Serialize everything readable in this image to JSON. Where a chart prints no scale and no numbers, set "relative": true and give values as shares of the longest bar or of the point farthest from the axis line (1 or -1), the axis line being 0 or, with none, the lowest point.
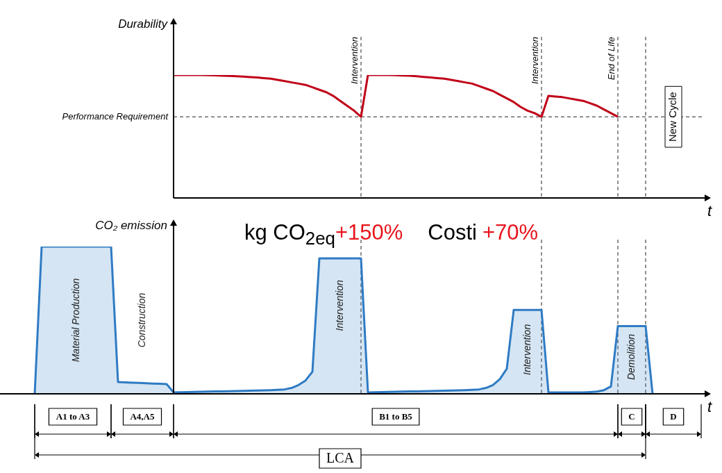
{
  "chart_data": [
    {
      "type": "line",
      "ylabel": "Durability",
      "xlabel": "t",
      "relative": true,
      "grid": "x",
      "legend": false,
      "marker": "none",
      "line_style": "solid",
      "categories": [
        null,
        null,
        null,
        null,
        null,
        null,
        null,
        null,
        null,
        null,
        null,
        null,
        null,
        null,
        null,
        null,
        null,
        null,
        null,
        null,
        null,
        null,
        null,
        null,
        null,
        null,
        null,
        null,
        null,
        null,
        null,
        null,
        null,
        null,
        null,
        null,
        null,
        null,
        null,
        null,
        null,
        null,
        null,
        null,
        null,
        null,
        null,
        null,
        null,
        null,
        null,
        null,
        null,
        null,
        null,
        null,
        null,
        null,
        null,
        null,
        null,
        null,
        null,
        null,
        null,
        null,
        null,
        null,
        null,
        null,
        null,
        null,
        null,
        null,
        null,
        null,
        null,
        null,
        null,
        null,
        null,
        null,
        null,
        null,
        null,
        null,
        null,
        null,
        null,
        null,
        null,
        null,
        null,
        null,
        null,
        null,
        null,
        null
      ],
      "series": [
        {
          "color": "#c00018",
          "values": [
            null,
            null,
            null,
            null,
            null,
            null,
            null,
            null,
            null,
            null,
            null,
            null,
            null,
            null,
            null,
            null,
            null,
            null,
            null,
            null,
            null,
            1.0,
            1.0,
            1.0,
            1.0,
            1.0,
            0.998,
            0.997,
            0.995,
            0.993,
            0.99,
            0.987,
            0.983,
            0.98,
            0.975,
            0.97,
            0.96,
            0.95,
            0.94,
            0.93,
            0.92,
            0.9,
            0.88,
            0.86,
            0.83,
            0.79,
            0.75,
            0.71,
            0.66,
            1.0,
            1.0,
            1.0,
            1.0,
            0.998,
            0.996,
            0.994,
            0.99,
            0.985,
            0.98,
            0.975,
            0.97,
            0.96,
            0.95,
            0.94,
            0.93,
            0.91,
            0.89,
            0.87,
            0.84,
            0.81,
            0.78,
            0.74,
            0.71,
            0.69,
            0.66,
            0.83,
            0.825,
            0.82,
            0.81,
            0.8,
            0.79,
            0.77,
            0.75,
            0.72,
            0.69,
            0.66,
            null,
            null,
            null,
            null,
            null,
            null,
            null,
            null,
            null,
            null,
            null,
            null
          ]
        }
      ],
      "ref_lines": [
        {
          "axis": "y",
          "value": 0.66,
          "label": "Performance Requirement",
          "line_style": "dashed"
        }
      ],
      "annotations": [
        "Intervention",
        "Intervention",
        "End of Life",
        "New Cycle"
      ]
    },
    {
      "type": "area",
      "ylabel": "CO₂ emission",
      "xlabel": "t",
      "relative": true,
      "grid": "x",
      "legend": false,
      "marker": "none",
      "line_style": "solid",
      "categories": [
        null,
        null,
        null,
        null,
        null,
        null,
        null,
        null,
        null,
        null,
        null,
        null,
        null,
        null,
        null,
        null,
        null,
        null,
        null,
        null,
        null,
        null,
        null,
        null,
        null,
        null,
        null,
        null,
        null,
        null,
        null,
        null,
        null,
        null,
        null,
        null,
        null,
        null,
        null,
        null,
        null,
        null,
        null,
        null,
        null,
        null,
        null,
        null,
        null,
        null,
        null,
        null,
        null,
        null,
        null,
        null,
        null,
        null,
        null,
        null,
        null,
        null,
        null,
        null,
        null,
        null,
        null,
        null,
        null,
        null,
        null,
        null,
        null,
        null,
        null,
        null,
        null,
        null,
        null,
        null,
        null,
        null,
        null,
        null,
        null,
        null,
        null,
        null,
        null,
        null,
        null,
        null,
        null,
        null,
        null,
        null,
        null,
        null
      ],
      "series": [
        {
          "color": "#2e7bc4",
          "values": [
            null,
            0,
            1.0,
            1.0,
            1.0,
            1.0,
            1.0,
            1.0,
            1.0,
            1.0,
            1.0,
            1.0,
            1.0,
            0.08,
            0.078,
            0.076,
            0.074,
            0.072,
            0.07,
            0.068,
            0.066,
            0.01,
            0.011,
            0.012,
            0.013,
            0.014,
            0.015,
            0.016,
            0.017,
            0.018,
            0.019,
            0.02,
            0.021,
            0.022,
            0.023,
            0.025,
            0.027,
            0.03,
            0.04,
            0.06,
            0.09,
            0.15,
            0.92,
            0.92,
            0.92,
            0.92,
            0.92,
            0.92,
            0.92,
            0.01,
            0.011,
            0.012,
            0.013,
            0.014,
            0.015,
            0.016,
            0.017,
            0.018,
            0.019,
            0.02,
            0.021,
            0.022,
            0.023,
            0.025,
            0.027,
            0.03,
            0.04,
            0.06,
            0.1,
            0.17,
            0.57,
            0.57,
            0.57,
            0.57,
            0.57,
            0.01,
            0.01,
            0.01,
            0.01,
            0.01,
            0.01,
            0.012,
            0.015,
            0.025,
            0.05,
            0.46,
            0.46,
            0.46,
            0.46,
            0.46,
            0,
            null,
            null,
            null,
            null,
            null,
            null,
            null
          ]
        }
      ],
      "annotations": [
        "kg CO$_{2eq}$",
        "+150%",
        "Costi",
        "+70%",
        "Material Production",
        "Construction",
        "Intervention",
        "Intervention",
        "Demolition",
        "A1 to A3",
        "A4,A5",
        "B1 to B5",
        "C",
        "D",
        "LCA"
      ]
    }
  ]
}
